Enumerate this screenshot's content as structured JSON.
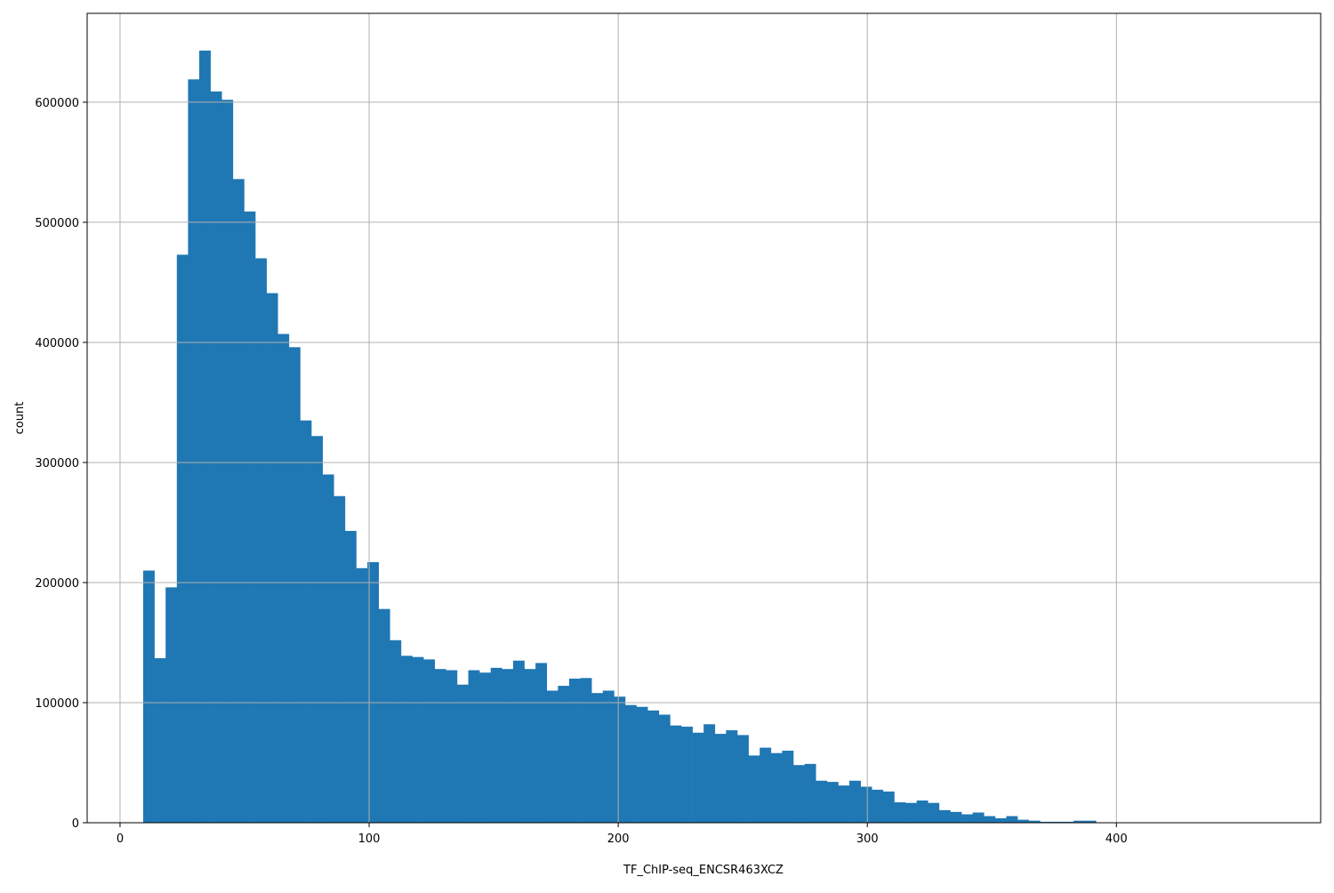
{
  "chart_data": {
    "type": "bar",
    "subtype": "histogram",
    "title": "",
    "xlabel": "TF_ChIP-seq_ENCSR463XCZ",
    "ylabel": "count",
    "xlim": [
      -13.2,
      482
    ],
    "ylim": [
      0,
      674000
    ],
    "xticks": [
      0,
      100,
      200,
      300,
      400
    ],
    "yticks": [
      0,
      100000,
      200000,
      300000,
      400000,
      500000,
      600000
    ],
    "grid": true,
    "bar_color": "#1f77b4",
    "bin_start": 9.3,
    "bin_width": 4.5,
    "counts": [
      210000,
      137000,
      196000,
      473000,
      619000,
      643000,
      609000,
      602000,
      536000,
      509000,
      470000,
      441000,
      407000,
      396000,
      335000,
      322000,
      290000,
      272000,
      243000,
      212000,
      217000,
      178000,
      152000,
      139000,
      138000,
      136000,
      128000,
      127000,
      115000,
      127000,
      125000,
      129000,
      128000,
      135000,
      128000,
      133000,
      110000,
      114000,
      120000,
      120500,
      108000,
      110000,
      105000,
      98000,
      96500,
      93500,
      90000,
      81000,
      80000,
      75000,
      82000,
      74000,
      77000,
      73000,
      56000,
      62500,
      58000,
      60000,
      48000,
      49000,
      35000,
      34000,
      31000,
      35000,
      30000,
      27500,
      26000,
      17000,
      16500,
      18500,
      16500,
      10500,
      9000,
      7000,
      8500,
      5500,
      3700,
      5500,
      2500,
      1700,
      800,
      800,
      800,
      1700,
      1700
    ]
  }
}
